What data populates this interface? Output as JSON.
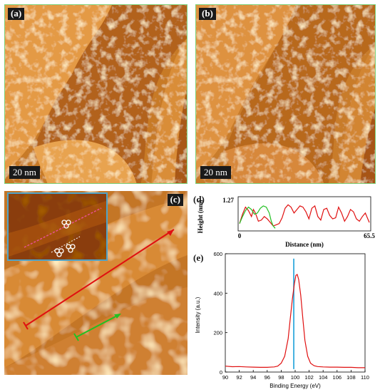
{
  "colors": {
    "stm_dark": "#7a2c00",
    "stm_mid": "#c7721c",
    "stm_light": "#ffe6b0",
    "panel_border": "#7bd27b",
    "inset_border": "#4fa3c8",
    "red_line": "#e01010",
    "green_line": "#22c022",
    "peak_marker": "#1aa0d8"
  },
  "panels": {
    "a": {
      "label": "(a)",
      "scale": "20 nm"
    },
    "b": {
      "label": "(b)",
      "scale": "20 nm"
    },
    "c": {
      "label": "(c)"
    },
    "d": {
      "label": "(d)"
    },
    "e": {
      "label": "(e)"
    }
  },
  "chart_data": [
    {
      "type": "line",
      "panel": "d",
      "xlabel": "Distance (nm)",
      "ylabel": "Height (nm)",
      "ymax_label": "1.27",
      "xmin_label": "0",
      "xmax_label": "65.5",
      "xlim": [
        0,
        65.5
      ],
      "ylim": [
        0,
        1.27
      ],
      "series": [
        {
          "color": "red",
          "x": [
            0,
            1.5,
            3,
            4.5,
            6,
            7,
            8,
            9.5,
            11,
            12.5,
            14,
            15.5,
            17,
            18.5,
            20,
            21.5,
            23,
            24.5,
            26,
            27.5,
            29,
            30.5,
            32,
            33.5,
            35,
            36.5,
            38,
            39.5,
            41,
            42.5,
            44,
            45.5,
            47,
            48.5,
            50,
            51.5,
            53,
            54.5,
            56,
            57.5,
            59,
            60.5,
            62,
            63.5,
            65.5
          ],
          "y": [
            0.25,
            0.65,
            0.95,
            0.8,
            0.55,
            0.85,
            0.7,
            0.35,
            0.4,
            0.55,
            0.45,
            0.3,
            0.15,
            0.2,
            0.25,
            0.5,
            0.9,
            1.05,
            0.95,
            0.7,
            0.85,
            1.0,
            0.95,
            0.75,
            0.45,
            0.9,
            1.0,
            0.55,
            0.4,
            0.85,
            0.9,
            0.6,
            0.45,
            0.5,
            0.95,
            0.7,
            0.35,
            0.55,
            0.85,
            0.75,
            0.45,
            0.35,
            0.55,
            0.7,
            0.3
          ]
        },
        {
          "color": "green",
          "x": [
            0,
            1.5,
            3,
            4.5,
            6,
            7.5,
            9,
            10.5,
            12,
            13.5,
            15,
            16,
            17,
            18
          ],
          "y": [
            0.25,
            0.55,
            0.8,
            0.95,
            0.85,
            0.65,
            0.7,
            0.9,
            1.0,
            0.95,
            0.7,
            0.35,
            0.15,
            0.05
          ]
        }
      ]
    },
    {
      "type": "line",
      "panel": "e",
      "xlabel": "Binding Energy (eV)",
      "ylabel": "Intensity (a.u.)",
      "xlim": [
        90,
        110
      ],
      "ylim": [
        0,
        600
      ],
      "xticks": [
        90,
        92,
        94,
        96,
        98,
        100,
        102,
        104,
        106,
        108,
        110
      ],
      "yticks": [
        0,
        200,
        400,
        600
      ],
      "peak_marker_x": 99.8,
      "series": [
        {
          "color": "red",
          "x": [
            90,
            91,
            92,
            93,
            94,
            95,
            96,
            97,
            97.5,
            98,
            98.5,
            99,
            99.3,
            99.6,
            99.9,
            100.1,
            100.3,
            100.5,
            100.8,
            101.1,
            101.4,
            101.8,
            102.2,
            102.7,
            103.2,
            104,
            105,
            106,
            107,
            108,
            109,
            110
          ],
          "y": [
            30,
            27,
            28,
            26,
            25,
            24,
            24,
            26,
            30,
            45,
            80,
            170,
            270,
            370,
            450,
            490,
            495,
            470,
            390,
            270,
            160,
            80,
            45,
            32,
            28,
            26,
            25,
            25,
            24,
            24,
            22,
            22
          ]
        }
      ]
    }
  ]
}
